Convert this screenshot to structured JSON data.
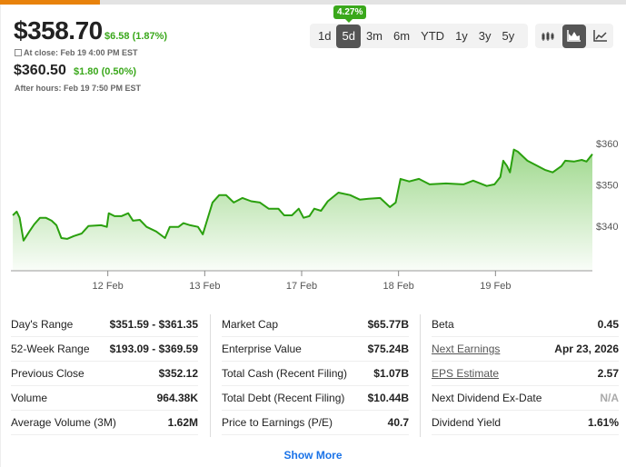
{
  "quote": {
    "price": "$358.70",
    "change": "$6.58 (1.87%)",
    "close_note": "At close: Feb 19 4:00 PM EST",
    "after_hours_price": "$360.50",
    "after_hours_change": "$1.80 (0.50%)",
    "after_hours_note": "After hours: Feb 19 7:50 PM EST",
    "period_change_badge": "4.27%"
  },
  "colors": {
    "up": "#3aa81b",
    "accent": "#e8820c",
    "link": "#1a73e8"
  },
  "ranges": [
    "1d",
    "5d",
    "3m",
    "6m",
    "YTD",
    "1y",
    "3y",
    "5y"
  ],
  "active_range": "5d",
  "chart_types": [
    "candlestick-icon",
    "area-chart-icon",
    "line-chart-icon"
  ],
  "chart_data": {
    "type": "area",
    "xlim": [
      0,
      6
    ],
    "ylim": [
      329.2,
      368.3
    ],
    "x_ticks": [
      {
        "t": 1,
        "label": "12 Feb"
      },
      {
        "t": 2,
        "label": "13 Feb"
      },
      {
        "t": 3,
        "label": "17 Feb"
      },
      {
        "t": 4,
        "label": "18 Feb"
      },
      {
        "t": 5,
        "label": "19 Feb"
      }
    ],
    "y_ticks": [
      {
        "v": 360,
        "label": "$360"
      },
      {
        "v": 350,
        "label": "$350"
      },
      {
        "v": 340,
        "label": "$340"
      }
    ],
    "points": [
      [
        0.02,
        342.6
      ],
      [
        0.06,
        343.5
      ],
      [
        0.09,
        342
      ],
      [
        0.13,
        336.5
      ],
      [
        0.19,
        338.7
      ],
      [
        0.24,
        340.4
      ],
      [
        0.3,
        342
      ],
      [
        0.36,
        342
      ],
      [
        0.42,
        341.3
      ],
      [
        0.47,
        340.2
      ],
      [
        0.52,
        337.1
      ],
      [
        0.58,
        336.9
      ],
      [
        0.65,
        337.6
      ],
      [
        0.73,
        338.2
      ],
      [
        0.8,
        340
      ],
      [
        0.93,
        340.2
      ],
      [
        0.99,
        339.8
      ],
      [
        1.01,
        343.1
      ],
      [
        1.07,
        342.4
      ],
      [
        1.14,
        342.4
      ],
      [
        1.21,
        343.1
      ],
      [
        1.26,
        341.3
      ],
      [
        1.33,
        341.5
      ],
      [
        1.4,
        339.8
      ],
      [
        1.5,
        338.7
      ],
      [
        1.59,
        337.1
      ],
      [
        1.64,
        339.8
      ],
      [
        1.73,
        339.8
      ],
      [
        1.78,
        340.7
      ],
      [
        1.85,
        340.2
      ],
      [
        1.93,
        339.8
      ],
      [
        1.98,
        338
      ],
      [
        2.04,
        342.6
      ],
      [
        2.08,
        345.7
      ],
      [
        2.15,
        347.5
      ],
      [
        2.22,
        347.5
      ],
      [
        2.3,
        345.7
      ],
      [
        2.39,
        346.8
      ],
      [
        2.48,
        346
      ],
      [
        2.57,
        345.7
      ],
      [
        2.66,
        344.2
      ],
      [
        2.76,
        344.2
      ],
      [
        2.82,
        342.6
      ],
      [
        2.9,
        342.6
      ],
      [
        2.97,
        344.2
      ],
      [
        3.02,
        342
      ],
      [
        3.08,
        342.4
      ],
      [
        3.13,
        344.2
      ],
      [
        3.2,
        343.7
      ],
      [
        3.27,
        346
      ],
      [
        3.38,
        348.1
      ],
      [
        3.5,
        347.5
      ],
      [
        3.6,
        346.4
      ],
      [
        3.69,
        346.6
      ],
      [
        3.81,
        346.8
      ],
      [
        3.91,
        344.6
      ],
      [
        3.97,
        345.7
      ],
      [
        4.02,
        351.4
      ],
      [
        4.11,
        350.8
      ],
      [
        4.21,
        351.4
      ],
      [
        4.32,
        350.1
      ],
      [
        4.49,
        350.3
      ],
      [
        4.67,
        350.1
      ],
      [
        4.77,
        351
      ],
      [
        4.91,
        349.7
      ],
      [
        4.99,
        350.1
      ],
      [
        5.05,
        351.9
      ],
      [
        5.08,
        355.8
      ],
      [
        5.12,
        354.5
      ],
      [
        5.15,
        353
      ],
      [
        5.19,
        358.5
      ],
      [
        5.23,
        358
      ],
      [
        5.33,
        355.8
      ],
      [
        5.42,
        354.7
      ],
      [
        5.51,
        353.6
      ],
      [
        5.59,
        353
      ],
      [
        5.68,
        354.5
      ],
      [
        5.72,
        355.8
      ],
      [
        5.81,
        355.6
      ],
      [
        5.89,
        356
      ],
      [
        5.94,
        355.6
      ],
      [
        6.0,
        357.4
      ]
    ]
  },
  "stats": [
    [
      {
        "label": "Day's Range",
        "value": "$351.59 - $361.35"
      },
      {
        "label": "52-Week Range",
        "value": "$193.09 - $369.59"
      },
      {
        "label": "Previous Close",
        "value": "$352.12"
      },
      {
        "label": "Volume",
        "value": "964.38K"
      },
      {
        "label": "Average Volume (3M)",
        "value": "1.62M"
      }
    ],
    [
      {
        "label": "Market Cap",
        "value": "$65.77B"
      },
      {
        "label": "Enterprise Value",
        "value": "$75.24B"
      },
      {
        "label": "Total Cash (Recent Filing)",
        "value": "$1.07B"
      },
      {
        "label": "Total Debt (Recent Filing)",
        "value": "$10.44B"
      },
      {
        "label": "Price to Earnings (P/E)",
        "value": "40.7"
      }
    ],
    [
      {
        "label": "Beta",
        "value": "0.45"
      },
      {
        "label": "Next Earnings",
        "value": "Apr 23, 2026",
        "link": true
      },
      {
        "label": "EPS Estimate",
        "value": "2.57",
        "link": true
      },
      {
        "label": "Next Dividend Ex-Date",
        "value": "N/A",
        "na": true
      },
      {
        "label": "Dividend Yield",
        "value": "1.61%"
      }
    ]
  ],
  "show_more": "Show More"
}
